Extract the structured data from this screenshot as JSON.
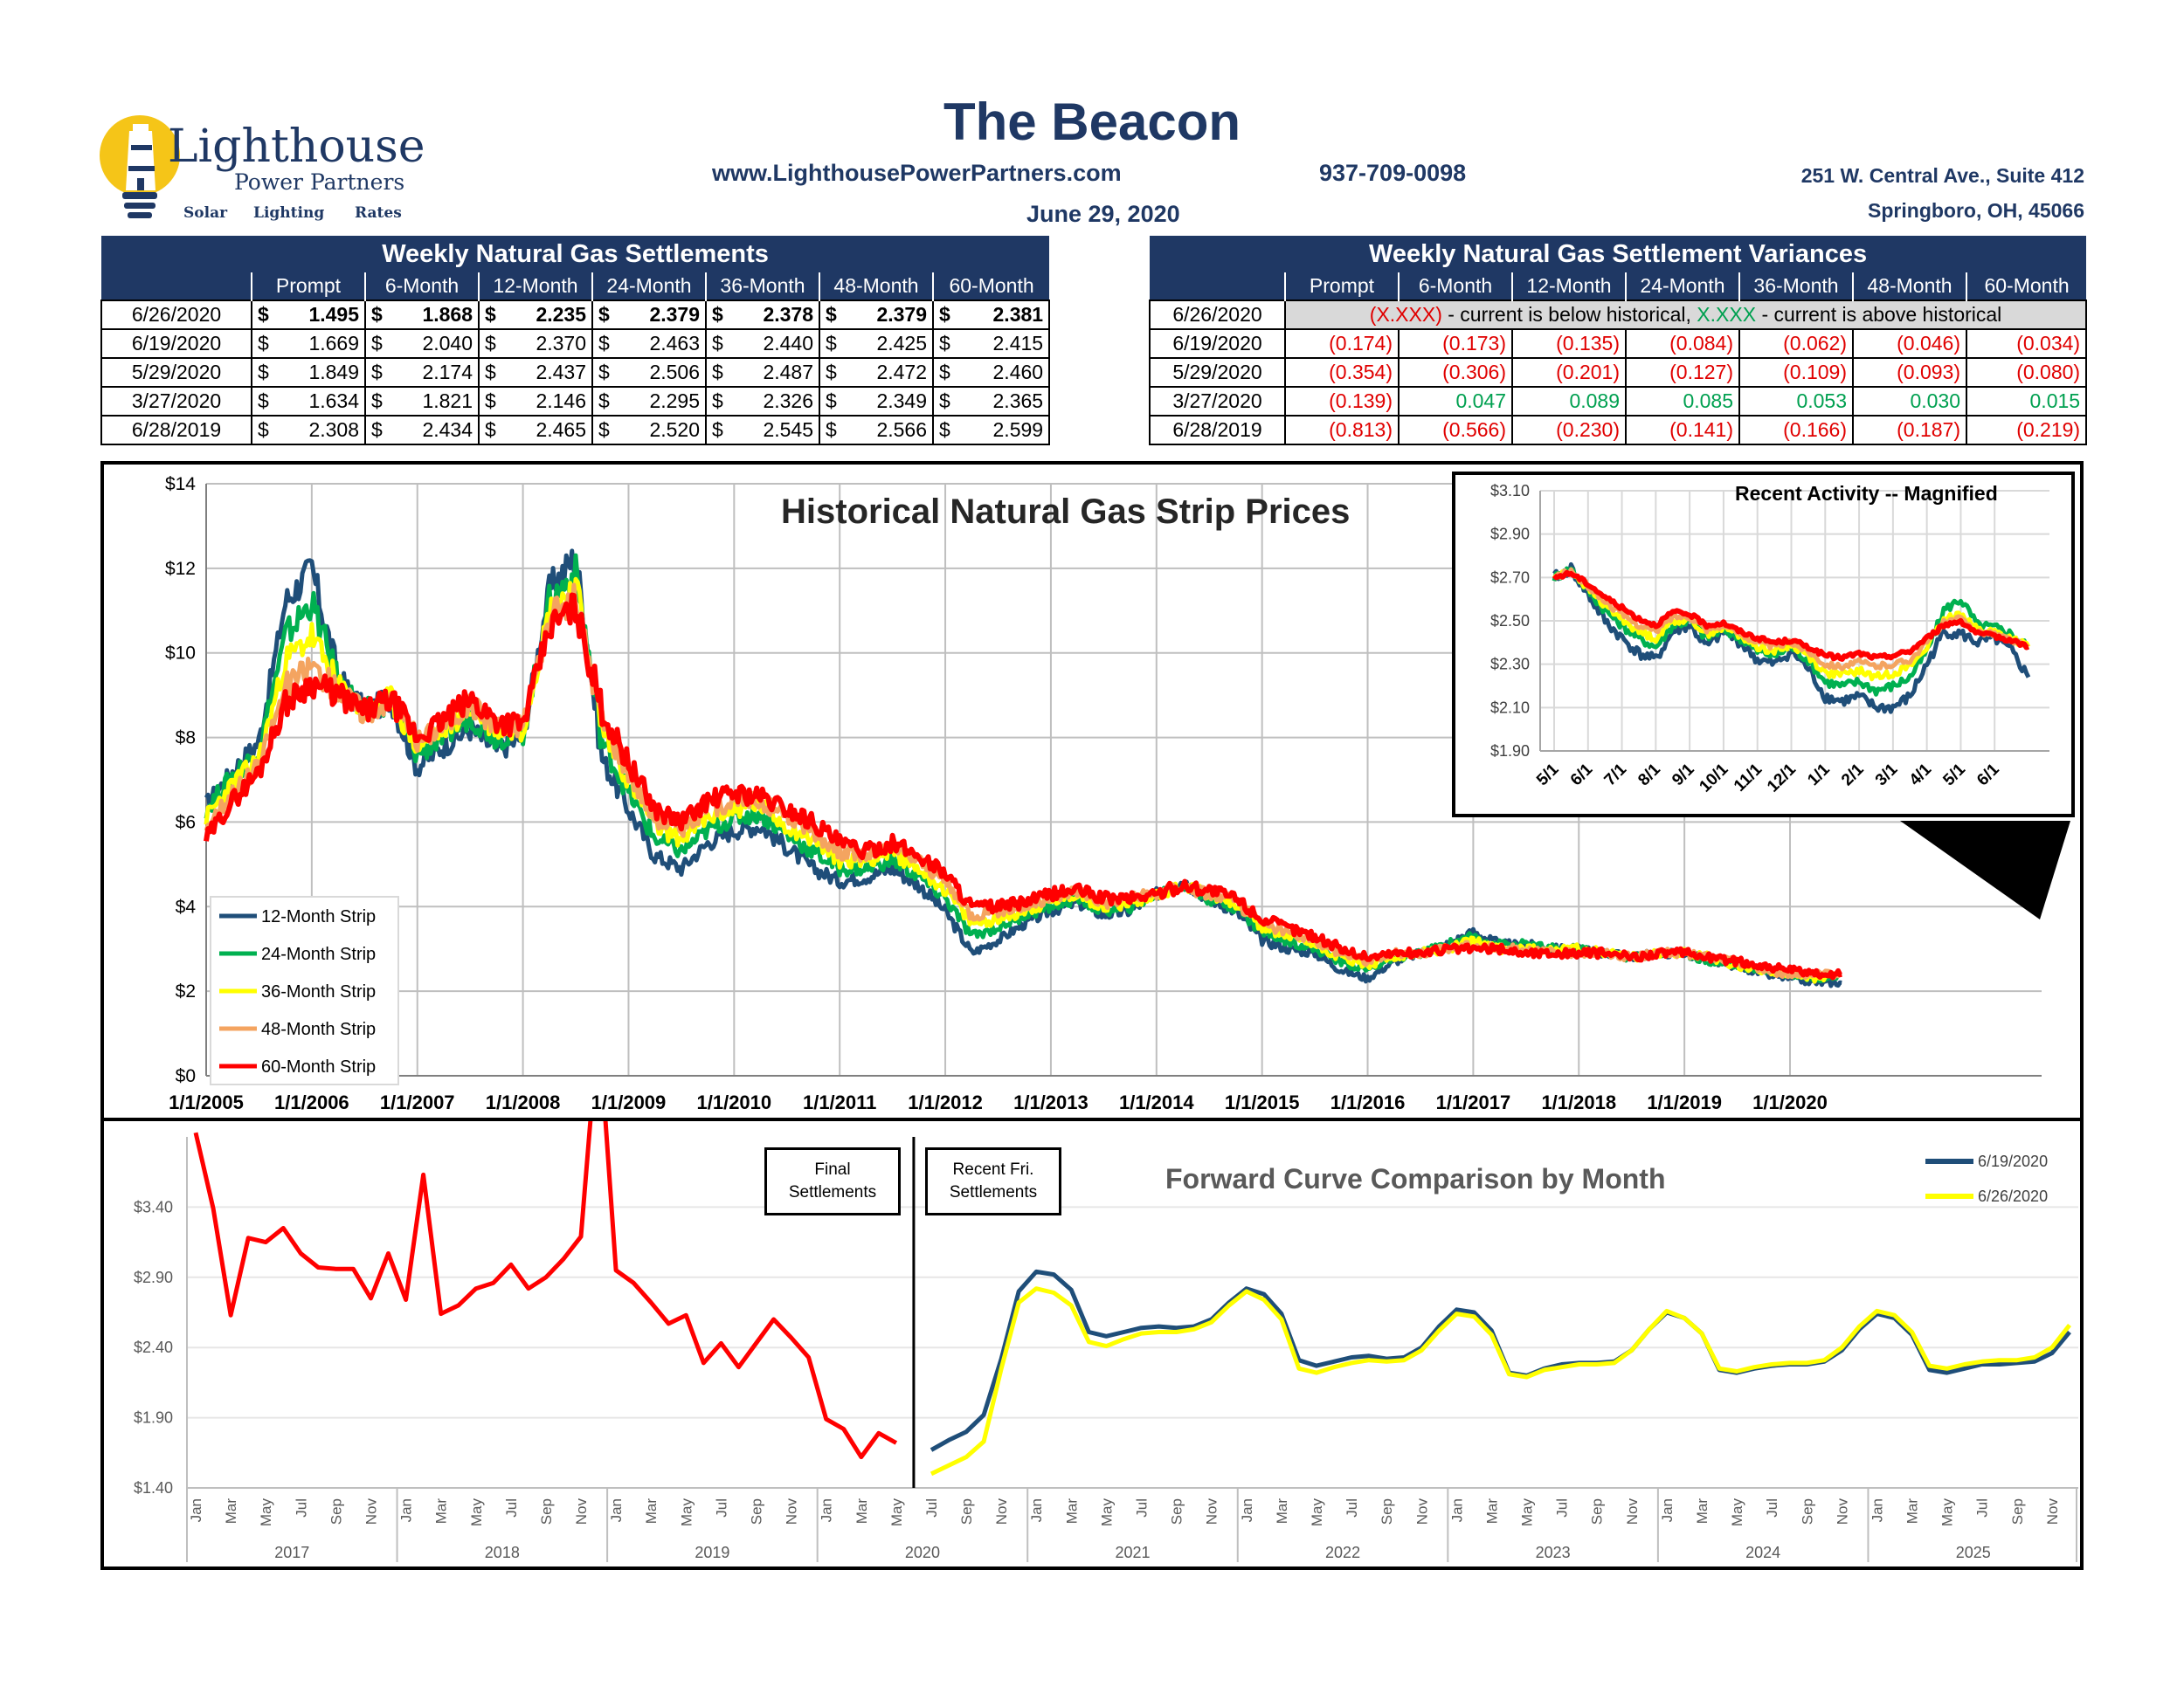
{
  "header": {
    "title": "The Beacon",
    "website": "www.LighthousePowerPartners.com",
    "phone": "937-709-0098",
    "address_line1": "251 W. Central Ave., Suite 412",
    "address_line2": "Springboro, OH, 45066",
    "date": "June 29, 2020",
    "logo": {
      "name": "Lighthouse",
      "sub": "Power Partners",
      "tagline": [
        "Solar",
        "Lighting",
        "Rates"
      ]
    }
  },
  "settlements": {
    "title": "Weekly Natural Gas Settlements",
    "columns": [
      "Prompt",
      "6-Month",
      "12-Month",
      "24-Month",
      "36-Month",
      "48-Month",
      "60-Month"
    ],
    "currency_symbol": "$",
    "rows": [
      {
        "date": "6/26/2020",
        "values": [
          "1.495",
          "1.868",
          "2.235",
          "2.379",
          "2.378",
          "2.379",
          "2.381"
        ],
        "bold": true
      },
      {
        "date": "6/19/2020",
        "values": [
          "1.669",
          "2.040",
          "2.370",
          "2.463",
          "2.440",
          "2.425",
          "2.415"
        ]
      },
      {
        "date": "5/29/2020",
        "values": [
          "1.849",
          "2.174",
          "2.437",
          "2.506",
          "2.487",
          "2.472",
          "2.460"
        ]
      },
      {
        "date": "3/27/2020",
        "values": [
          "1.634",
          "1.821",
          "2.146",
          "2.295",
          "2.326",
          "2.349",
          "2.365"
        ]
      },
      {
        "date": "6/28/2019",
        "values": [
          "2.308",
          "2.434",
          "2.465",
          "2.520",
          "2.545",
          "2.566",
          "2.599"
        ]
      }
    ]
  },
  "variances": {
    "title": "Weekly Natural Gas Settlement Variances",
    "columns": [
      "Prompt",
      "6-Month",
      "12-Month",
      "24-Month",
      "36-Month",
      "48-Month",
      "60-Month"
    ],
    "legend_row": {
      "date": "6/26/2020",
      "neg_sample": "(X.XXX)",
      "neg_text": " - current is below historical, ",
      "pos_sample": "X.XXX",
      "pos_text": " - current is above historical"
    },
    "rows": [
      {
        "date": "6/19/2020",
        "values": [
          "(0.174)",
          "(0.173)",
          "(0.135)",
          "(0.084)",
          "(0.062)",
          "(0.046)",
          "(0.034)"
        ]
      },
      {
        "date": "5/29/2020",
        "values": [
          "(0.354)",
          "(0.306)",
          "(0.201)",
          "(0.127)",
          "(0.109)",
          "(0.093)",
          "(0.080)"
        ]
      },
      {
        "date": "3/27/2020",
        "values": [
          "(0.139)",
          "0.047",
          "0.089",
          "0.085",
          "0.053",
          "0.030",
          "0.015"
        ]
      },
      {
        "date": "6/28/2019",
        "values": [
          "(0.813)",
          "(0.566)",
          "(0.230)",
          "(0.141)",
          "(0.166)",
          "(0.187)",
          "(0.219)"
        ]
      }
    ]
  },
  "colors": {
    "navy": "#1F3864",
    "s12": "#1F4E79",
    "s24": "#00B050",
    "s36": "#FFFF00",
    "s48": "#F4A460",
    "s60": "#FF0000",
    "neg": "#E00000",
    "pos": "#00A050"
  },
  "chart_data": [
    {
      "type": "line",
      "title": "Historical Natural Gas Strip Prices",
      "ylim": [
        0,
        14
      ],
      "yticks": [
        "$0",
        "$2",
        "$4",
        "$6",
        "$8",
        "$10",
        "$12",
        "$14"
      ],
      "xticks": [
        "1/1/2005",
        "1/1/2006",
        "1/1/2007",
        "1/1/2008",
        "1/1/2009",
        "1/1/2010",
        "1/1/2011",
        "1/1/2012",
        "1/1/2013",
        "1/1/2014",
        "1/1/2015",
        "1/1/2016",
        "1/1/2017",
        "1/1/2018",
        "1/1/2019",
        "1/1/2020"
      ],
      "x": [
        2005.0,
        2005.25,
        2005.5,
        2005.75,
        2006.0,
        2006.25,
        2006.5,
        2006.75,
        2007.0,
        2007.25,
        2007.5,
        2007.75,
        2008.0,
        2008.25,
        2008.5,
        2008.75,
        2009.0,
        2009.25,
        2009.5,
        2009.75,
        2010.0,
        2010.25,
        2010.5,
        2010.75,
        2011.0,
        2011.25,
        2011.5,
        2011.75,
        2012.0,
        2012.25,
        2012.5,
        2012.75,
        2013.0,
        2013.25,
        2013.5,
        2013.75,
        2014.0,
        2014.25,
        2014.5,
        2014.75,
        2015.0,
        2015.25,
        2015.5,
        2015.75,
        2016.0,
        2016.25,
        2016.5,
        2016.75,
        2017.0,
        2017.25,
        2017.5,
        2017.75,
        2018.0,
        2018.25,
        2018.5,
        2018.75,
        2019.0,
        2019.25,
        2019.5,
        2019.75,
        2020.0,
        2020.25,
        2020.49
      ],
      "legend_position": "bottom-left",
      "series": [
        {
          "name": "12-Month Strip",
          "color_key": "s12",
          "values": [
            6.4,
            7.2,
            7.9,
            11.2,
            12.0,
            9.4,
            8.6,
            8.9,
            7.3,
            7.8,
            8.2,
            7.7,
            8.0,
            11.5,
            12.3,
            7.5,
            6.3,
            5.2,
            4.9,
            5.5,
            5.8,
            5.9,
            5.4,
            4.9,
            4.6,
            4.7,
            4.9,
            4.5,
            3.9,
            2.9,
            3.2,
            3.6,
            3.9,
            4.1,
            3.8,
            3.9,
            4.3,
            4.6,
            4.2,
            3.9,
            3.2,
            3.0,
            2.9,
            2.5,
            2.3,
            2.7,
            2.9,
            3.1,
            3.4,
            3.1,
            3.1,
            3.0,
            3.0,
            2.9,
            2.8,
            2.9,
            2.9,
            2.7,
            2.6,
            2.4,
            2.3,
            2.2,
            2.2
          ]
        },
        {
          "name": "24-Month Strip",
          "color_key": "s24",
          "values": [
            6.3,
            7.1,
            7.7,
            10.4,
            11.2,
            9.3,
            8.6,
            8.9,
            7.6,
            8.0,
            8.5,
            8.0,
            8.1,
            11.2,
            11.9,
            7.9,
            6.7,
            5.6,
            5.3,
            5.8,
            6.1,
            6.2,
            5.7,
            5.3,
            4.9,
            4.9,
            5.1,
            4.7,
            4.2,
            3.3,
            3.5,
            3.8,
            4.0,
            4.2,
            3.9,
            4.0,
            4.3,
            4.5,
            4.2,
            4.0,
            3.4,
            3.2,
            3.0,
            2.7,
            2.5,
            2.8,
            2.9,
            3.1,
            3.3,
            3.1,
            3.1,
            3.0,
            3.0,
            2.9,
            2.8,
            2.9,
            2.9,
            2.7,
            2.6,
            2.5,
            2.4,
            2.3,
            2.4
          ]
        },
        {
          "name": "36-Month Strip",
          "color_key": "s36",
          "values": [
            6.1,
            6.9,
            7.5,
            9.8,
            10.4,
            9.2,
            8.6,
            8.9,
            7.8,
            8.2,
            8.7,
            8.2,
            8.2,
            11.0,
            11.6,
            8.2,
            7.0,
            5.9,
            5.6,
            6.1,
            6.3,
            6.4,
            5.9,
            5.6,
            5.1,
            5.1,
            5.3,
            4.9,
            4.4,
            3.6,
            3.7,
            3.9,
            4.1,
            4.3,
            4.0,
            4.1,
            4.3,
            4.5,
            4.3,
            4.1,
            3.5,
            3.3,
            3.1,
            2.8,
            2.6,
            2.8,
            2.9,
            3.0,
            3.2,
            3.0,
            3.0,
            3.0,
            3.0,
            2.9,
            2.8,
            2.9,
            2.9,
            2.8,
            2.6,
            2.5,
            2.4,
            2.3,
            2.4
          ]
        },
        {
          "name": "48-Month Strip",
          "color_key": "s48",
          "values": [
            5.9,
            6.7,
            7.3,
            9.2,
            9.7,
            9.1,
            8.6,
            8.9,
            7.9,
            8.3,
            8.8,
            8.3,
            8.3,
            10.8,
            11.3,
            8.4,
            7.2,
            6.1,
            5.8,
            6.3,
            6.5,
            6.5,
            6.1,
            5.8,
            5.3,
            5.2,
            5.4,
            5.1,
            4.6,
            3.8,
            3.9,
            4.0,
            4.2,
            4.4,
            4.1,
            4.2,
            4.3,
            4.5,
            4.3,
            4.1,
            3.6,
            3.4,
            3.2,
            2.9,
            2.7,
            2.9,
            2.9,
            3.0,
            3.1,
            3.0,
            3.0,
            2.9,
            2.9,
            2.9,
            2.8,
            2.9,
            2.9,
            2.8,
            2.7,
            2.5,
            2.4,
            2.4,
            2.4
          ]
        },
        {
          "name": "60-Month Strip",
          "color_key": "s60",
          "values": [
            5.6,
            6.5,
            7.2,
            8.8,
            9.3,
            9.0,
            8.6,
            8.9,
            8.0,
            8.4,
            8.9,
            8.4,
            8.3,
            10.6,
            11.1,
            8.6,
            7.4,
            6.3,
            6.0,
            6.5,
            6.7,
            6.6,
            6.3,
            6.0,
            5.5,
            5.3,
            5.5,
            5.2,
            4.8,
            4.0,
            4.0,
            4.1,
            4.3,
            4.4,
            4.2,
            4.2,
            4.3,
            4.5,
            4.4,
            4.2,
            3.7,
            3.5,
            3.3,
            3.0,
            2.8,
            2.9,
            2.9,
            3.0,
            3.0,
            3.0,
            2.9,
            2.9,
            2.9,
            2.9,
            2.8,
            2.9,
            2.9,
            2.8,
            2.7,
            2.6,
            2.5,
            2.4,
            2.4
          ]
        }
      ]
    },
    {
      "type": "line",
      "title": "Recent Activity -- Magnified",
      "ylim": [
        1.9,
        3.1
      ],
      "yticks": [
        "$1.90",
        "$2.10",
        "$2.30",
        "$2.50",
        "$2.70",
        "$2.90",
        "$3.10"
      ],
      "xticks": [
        "5/1",
        "6/1",
        "7/1",
        "8/1",
        "9/1",
        "10/1",
        "11/1",
        "12/1",
        "1/1",
        "2/1",
        "3/1",
        "4/1",
        "5/1",
        "6/1"
      ],
      "x": [
        0,
        0.5,
        1,
        1.5,
        2,
        2.5,
        3,
        3.5,
        4,
        4.5,
        5,
        5.5,
        6,
        6.5,
        7,
        7.5,
        8,
        8.5,
        9,
        9.5,
        10,
        10.5,
        11,
        11.5,
        12,
        12.5,
        13,
        13.5,
        14
      ],
      "series": [
        {
          "name": "12-Month Strip",
          "color_key": "s12",
          "values": [
            2.7,
            2.74,
            2.62,
            2.5,
            2.42,
            2.35,
            2.32,
            2.45,
            2.48,
            2.38,
            2.45,
            2.4,
            2.32,
            2.3,
            2.36,
            2.28,
            2.15,
            2.13,
            2.15,
            2.1,
            2.1,
            2.15,
            2.3,
            2.45,
            2.44,
            2.4,
            2.42,
            2.36,
            2.24
          ]
        },
        {
          "name": "24-Month Strip",
          "color_key": "s24",
          "values": [
            2.7,
            2.74,
            2.64,
            2.55,
            2.48,
            2.42,
            2.38,
            2.48,
            2.5,
            2.42,
            2.46,
            2.42,
            2.36,
            2.34,
            2.38,
            2.32,
            2.22,
            2.2,
            2.22,
            2.18,
            2.2,
            2.24,
            2.36,
            2.55,
            2.6,
            2.48,
            2.47,
            2.44,
            2.38
          ]
        },
        {
          "name": "36-Month Strip",
          "color_key": "s36",
          "values": [
            2.7,
            2.73,
            2.65,
            2.57,
            2.51,
            2.45,
            2.42,
            2.5,
            2.51,
            2.44,
            2.47,
            2.43,
            2.38,
            2.36,
            2.39,
            2.34,
            2.26,
            2.25,
            2.27,
            2.24,
            2.26,
            2.29,
            2.38,
            2.5,
            2.54,
            2.46,
            2.45,
            2.42,
            2.38
          ]
        },
        {
          "name": "48-Month Strip",
          "color_key": "s48",
          "values": [
            2.7,
            2.73,
            2.66,
            2.59,
            2.53,
            2.48,
            2.45,
            2.52,
            2.52,
            2.46,
            2.48,
            2.44,
            2.4,
            2.38,
            2.4,
            2.36,
            2.3,
            2.29,
            2.31,
            2.29,
            2.3,
            2.32,
            2.4,
            2.49,
            2.51,
            2.45,
            2.44,
            2.41,
            2.38
          ]
        },
        {
          "name": "60-Month Strip",
          "color_key": "s60",
          "values": [
            2.7,
            2.72,
            2.67,
            2.61,
            2.56,
            2.51,
            2.48,
            2.54,
            2.53,
            2.48,
            2.49,
            2.45,
            2.42,
            2.4,
            2.41,
            2.38,
            2.34,
            2.33,
            2.35,
            2.33,
            2.34,
            2.36,
            2.42,
            2.48,
            2.5,
            2.44,
            2.43,
            2.41,
            2.38
          ]
        }
      ]
    },
    {
      "type": "line",
      "title": "Forward Curve Comparison by Month",
      "ylim": [
        1.4,
        3.9
      ],
      "yticks": [
        "$1.40",
        "$1.90",
        "$2.40",
        "$2.90",
        "$3.40"
      ],
      "month_labels": [
        "Jan",
        "Mar",
        "May",
        "Jul",
        "Sep",
        "Nov"
      ],
      "years": [
        "2017",
        "2018",
        "2019",
        "2020",
        "2021",
        "2022",
        "2023",
        "2024",
        "2025"
      ],
      "annotations": {
        "left": "Final Settlements",
        "right": "Recent Fri. Settlements"
      },
      "final_settlements": {
        "start_month_index": 0,
        "values": [
          3.93,
          3.39,
          2.63,
          3.18,
          3.15,
          3.25,
          3.07,
          2.97,
          2.96,
          2.96,
          2.75,
          3.07,
          2.74,
          3.63,
          2.64,
          2.7,
          2.82,
          2.86,
          2.99,
          2.82,
          2.9,
          3.03,
          3.19,
          4.72,
          2.95,
          2.86,
          2.72,
          2.57,
          2.63,
          2.29,
          2.43,
          2.26,
          2.43,
          2.6,
          2.47,
          2.33,
          1.89,
          1.82,
          1.62,
          1.79,
          1.72
        ]
      },
      "series": [
        {
          "name": "6/19/2020",
          "color_key": "s12",
          "start_month_index": 42,
          "values": [
            1.67,
            1.74,
            1.8,
            1.92,
            2.32,
            2.8,
            2.94,
            2.92,
            2.81,
            2.51,
            2.48,
            2.51,
            2.54,
            2.55,
            2.54,
            2.55,
            2.6,
            2.72,
            2.82,
            2.78,
            2.64,
            2.31,
            2.27,
            2.3,
            2.33,
            2.34,
            2.32,
            2.33,
            2.4,
            2.55,
            2.67,
            2.65,
            2.52,
            2.22,
            2.2,
            2.25,
            2.28,
            2.29,
            2.29,
            2.3,
            2.38,
            2.53,
            2.65,
            2.61,
            2.5,
            2.24,
            2.22,
            2.25,
            2.27,
            2.28,
            2.28,
            2.3,
            2.38,
            2.53,
            2.64,
            2.61,
            2.49,
            2.24,
            2.22,
            2.25,
            2.28,
            2.28,
            2.29,
            2.3,
            2.36,
            2.51
          ]
        },
        {
          "name": "6/26/2020",
          "color_key": "s36",
          "start_month_index": 42,
          "values": [
            1.5,
            1.56,
            1.62,
            1.73,
            2.25,
            2.72,
            2.82,
            2.79,
            2.7,
            2.44,
            2.41,
            2.46,
            2.5,
            2.51,
            2.51,
            2.53,
            2.58,
            2.7,
            2.8,
            2.74,
            2.6,
            2.25,
            2.22,
            2.26,
            2.29,
            2.31,
            2.3,
            2.31,
            2.38,
            2.52,
            2.64,
            2.62,
            2.49,
            2.21,
            2.19,
            2.24,
            2.26,
            2.28,
            2.28,
            2.29,
            2.38,
            2.53,
            2.66,
            2.61,
            2.5,
            2.25,
            2.23,
            2.26,
            2.28,
            2.29,
            2.29,
            2.31,
            2.4,
            2.55,
            2.66,
            2.63,
            2.51,
            2.27,
            2.25,
            2.28,
            2.3,
            2.31,
            2.31,
            2.33,
            2.4,
            2.56
          ]
        }
      ]
    }
  ]
}
